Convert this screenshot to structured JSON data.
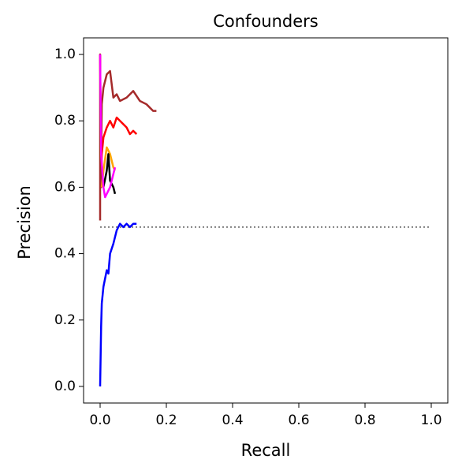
{
  "chart_data": {
    "type": "line",
    "title": "Confounders",
    "xlabel": "Recall",
    "ylabel": "Precision",
    "xlim": [
      -0.05,
      1.05
    ],
    "ylim": [
      -0.05,
      1.05
    ],
    "xticks": [
      {
        "value": 0,
        "label": "0.0"
      },
      0.2,
      0.4,
      0.6,
      0.8,
      {
        "value": 1,
        "label": "1.0"
      }
    ],
    "yticks": [
      {
        "value": 0,
        "label": "0.0"
      },
      0.2,
      0.4,
      0.6,
      0.8,
      {
        "value": 1,
        "label": "1.0"
      }
    ],
    "series": [
      {
        "color": "#808080",
        "linestyle": "dotted",
        "x": [
          0,
          1
        ],
        "values": [
          0.48,
          0.48
        ]
      },
      {
        "color": "#0000ff",
        "x": [
          0,
          0.003,
          0.005,
          0.01,
          0.02,
          0.025,
          0.03,
          0.04,
          0.05,
          0.06,
          0.07,
          0.08,
          0.09,
          0.1,
          0.11
        ],
        "values": [
          0,
          0.18,
          0.25,
          0.3,
          0.35,
          0.34,
          0.4,
          0.43,
          0.47,
          0.49,
          0.48,
          0.49,
          0.48,
          0.49,
          0.49
        ]
      },
      {
        "color": "#ff0000",
        "x": [
          0,
          0.003,
          0.005,
          0.01,
          0.02,
          0.03,
          0.04,
          0.05,
          0.06,
          0.07,
          0.08,
          0.09,
          0.1,
          0.11
        ],
        "values": [
          1.0,
          0.6,
          0.7,
          0.75,
          0.78,
          0.8,
          0.78,
          0.81,
          0.8,
          0.79,
          0.78,
          0.76,
          0.77,
          0.76
        ]
      },
      {
        "color": "#a52a2a",
        "x": [
          0,
          0,
          0.002,
          0.005,
          0.01,
          0.02,
          0.03,
          0.04,
          0.05,
          0.06,
          0.08,
          0.1,
          0.12,
          0.14,
          0.16,
          0.17
        ],
        "values": [
          0.5,
          1.0,
          0.6,
          0.85,
          0.9,
          0.94,
          0.95,
          0.87,
          0.88,
          0.86,
          0.87,
          0.89,
          0.86,
          0.85,
          0.83,
          0.83
        ]
      },
      {
        "color": "#ffa500",
        "x": [
          0.005,
          0.01,
          0.02,
          0.03,
          0.04,
          0.045
        ],
        "values": [
          0.6,
          0.65,
          0.72,
          0.7,
          0.66,
          0.65
        ]
      },
      {
        "color": "#000000",
        "x": [
          0.01,
          0.02,
          0.025,
          0.03,
          0.04,
          0.045
        ],
        "values": [
          0.6,
          0.65,
          0.7,
          0.62,
          0.6,
          0.58
        ]
      },
      {
        "color": "#ff00ff",
        "x": [
          0,
          0.003,
          0.01,
          0.015,
          0.02,
          0.03,
          0.04,
          0.045
        ],
        "values": [
          1.0,
          0.7,
          0.6,
          0.57,
          0.58,
          0.6,
          0.64,
          0.66
        ]
      }
    ]
  }
}
